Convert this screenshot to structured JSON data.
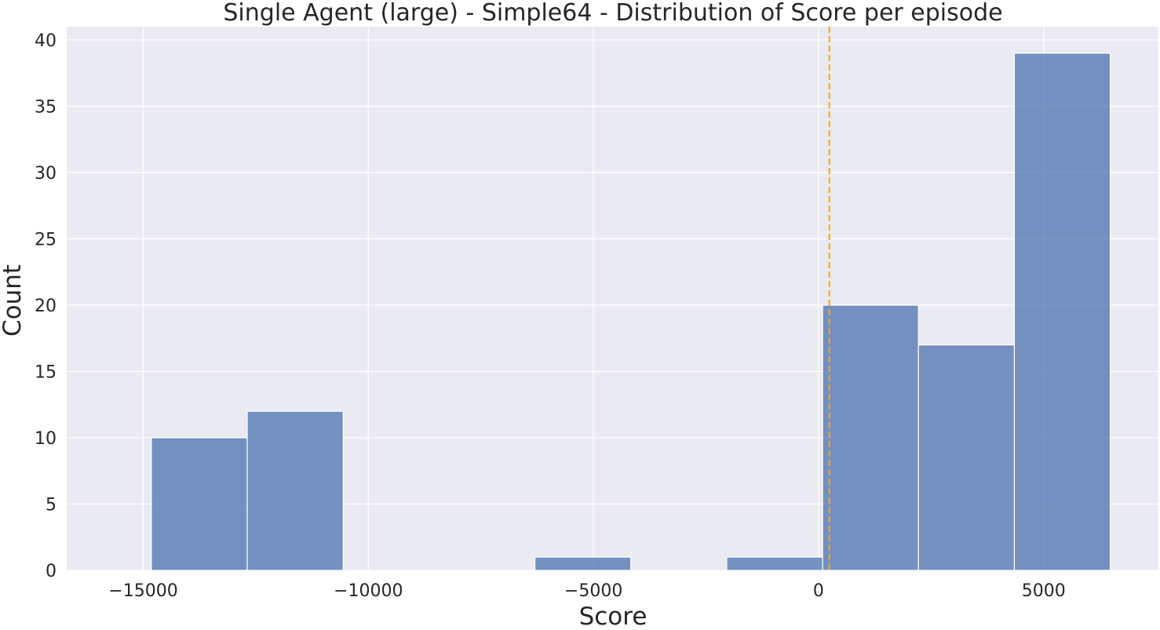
{
  "chart_data": {
    "type": "bar",
    "title": "Single Agent (large) - Simple64 - Distribution of Score per episode",
    "xlabel": "Score",
    "ylabel": "Count",
    "xlim": [
      -16700,
      7550
    ],
    "ylim": [
      0,
      41
    ],
    "x_ticks": [
      -15000,
      -10000,
      -5000,
      0,
      5000
    ],
    "x_tick_labels": [
      "−15000",
      "−10000",
      "−5000",
      "0",
      "5000"
    ],
    "y_ticks": [
      0,
      5,
      10,
      15,
      20,
      25,
      30,
      35,
      40
    ],
    "y_tick_labels": [
      "0",
      "5",
      "10",
      "15",
      "20",
      "25",
      "30",
      "35",
      "40"
    ],
    "bins": [
      {
        "start": -14820,
        "end": -12690,
        "count": 10
      },
      {
        "start": -12690,
        "end": -10560,
        "count": 12
      },
      {
        "start": -10560,
        "end": -8430,
        "count": 0
      },
      {
        "start": -8430,
        "end": -6300,
        "count": 0
      },
      {
        "start": -6300,
        "end": -4170,
        "count": 1
      },
      {
        "start": -4170,
        "end": -2040,
        "count": 0
      },
      {
        "start": -2040,
        "end": 90,
        "count": 1
      },
      {
        "start": 90,
        "end": 2220,
        "count": 20
      },
      {
        "start": 2220,
        "end": 4350,
        "count": 17
      },
      {
        "start": 4350,
        "end": 6480,
        "count": 39
      }
    ],
    "reference_line": {
      "x": 240,
      "style": "dashed"
    },
    "grid": true,
    "colors": {
      "bar_fill": "#4c72b0",
      "bar_edge": "#ffffff",
      "plot_background": "#eaeaf2",
      "grid": "#ffffff",
      "reference_line": "#ffa500"
    }
  }
}
